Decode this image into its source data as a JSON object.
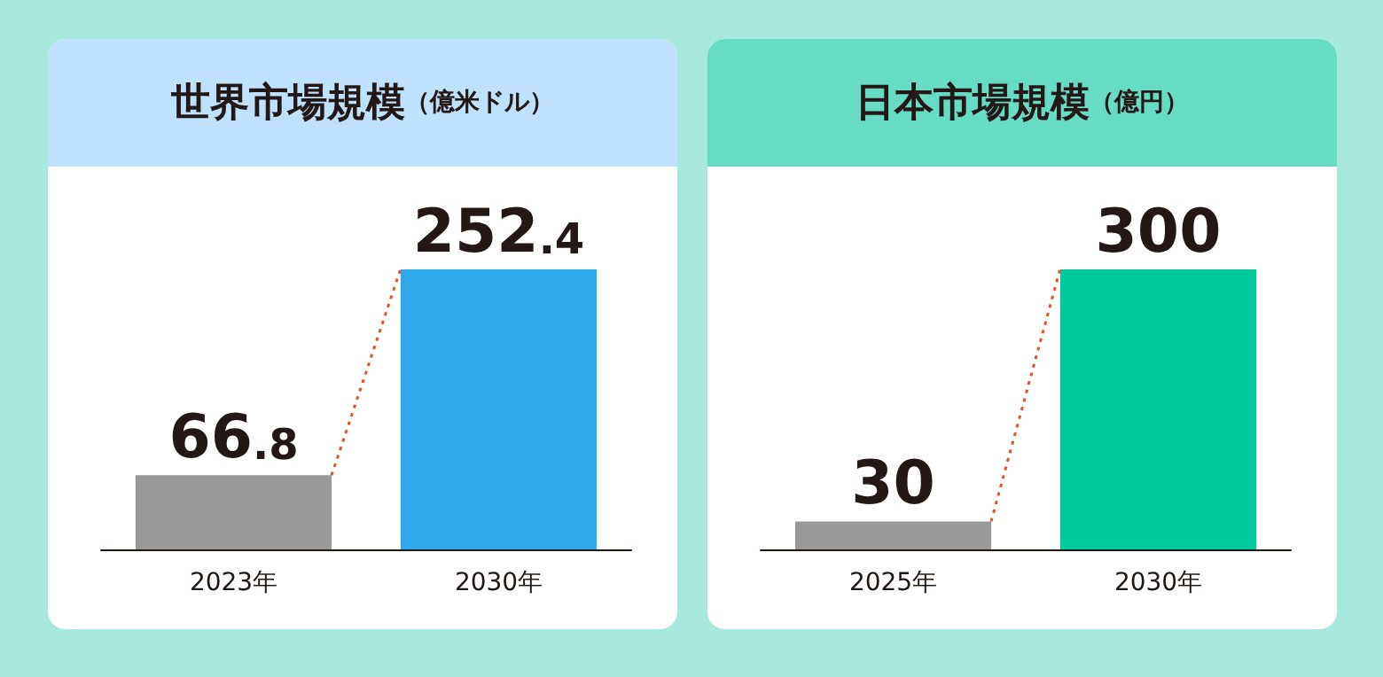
{
  "chart_data": [
    {
      "type": "bar",
      "title": "世界市場規模",
      "subtitle": "（億米ドル）",
      "categories": [
        "2023年",
        "2030年"
      ],
      "values": [
        66.8,
        252.4
      ],
      "colors": [
        "#999999",
        "#2fa8e9"
      ],
      "data_labels": true
    },
    {
      "type": "bar",
      "title": "日本市場規模",
      "subtitle": "（億円）",
      "categories": [
        "2025年",
        "2030年"
      ],
      "values": [
        30,
        300
      ],
      "colors": [
        "#999999",
        "#00c99a"
      ],
      "data_labels": true
    }
  ]
}
